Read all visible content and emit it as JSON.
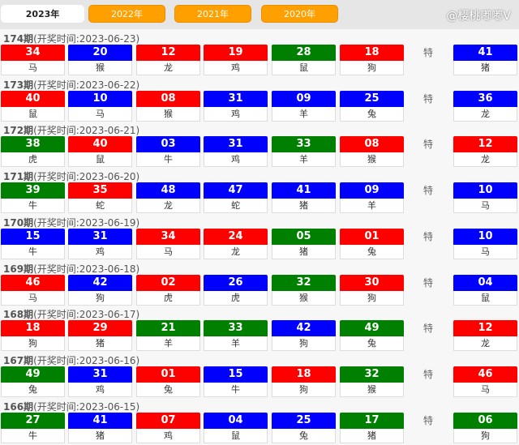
{
  "tabs": [
    {
      "label": "2023年",
      "active": true
    },
    {
      "label": "2022年"
    },
    {
      "label": "2021年"
    },
    {
      "label": "2020年"
    }
  ],
  "special_label": "特",
  "colors": {
    "r": "#ff0000",
    "b": "#0000ff",
    "g": "#008000"
  },
  "records": [
    {
      "issue": "174期",
      "time": "(开奖时间:2023-06-23)",
      "balls": [
        [
          "34",
          "r",
          "马"
        ],
        [
          "20",
          "b",
          "猴"
        ],
        [
          "12",
          "r",
          "龙"
        ],
        [
          "19",
          "r",
          "鸡"
        ],
        [
          "28",
          "g",
          "鼠"
        ],
        [
          "18",
          "r",
          "狗"
        ]
      ],
      "special": [
        "41",
        "b",
        "猪"
      ]
    },
    {
      "issue": "173期",
      "time": "(开奖时间:2023-06-22)",
      "balls": [
        [
          "40",
          "r",
          "鼠"
        ],
        [
          "10",
          "b",
          "马"
        ],
        [
          "08",
          "r",
          "猴"
        ],
        [
          "31",
          "b",
          "鸡"
        ],
        [
          "09",
          "b",
          "羊"
        ],
        [
          "25",
          "b",
          "兔"
        ]
      ],
      "special": [
        "36",
        "b",
        "龙"
      ]
    },
    {
      "issue": "172期",
      "time": "(开奖时间:2023-06-21)",
      "balls": [
        [
          "38",
          "g",
          "虎"
        ],
        [
          "40",
          "r",
          "鼠"
        ],
        [
          "03",
          "b",
          "牛"
        ],
        [
          "31",
          "b",
          "鸡"
        ],
        [
          "33",
          "g",
          "羊"
        ],
        [
          "08",
          "r",
          "猴"
        ]
      ],
      "special": [
        "12",
        "r",
        "龙"
      ]
    },
    {
      "issue": "171期",
      "time": "(开奖时间:2023-06-20)",
      "balls": [
        [
          "39",
          "g",
          "牛"
        ],
        [
          "35",
          "r",
          "蛇"
        ],
        [
          "48",
          "b",
          "龙"
        ],
        [
          "47",
          "b",
          "蛇"
        ],
        [
          "41",
          "b",
          "猪"
        ],
        [
          "09",
          "b",
          "羊"
        ]
      ],
      "special": [
        "10",
        "b",
        "马"
      ]
    },
    {
      "issue": "170期",
      "time": "(开奖时间:2023-06-19)",
      "balls": [
        [
          "15",
          "b",
          "牛"
        ],
        [
          "31",
          "b",
          "鸡"
        ],
        [
          "34",
          "r",
          "马"
        ],
        [
          "24",
          "r",
          "龙"
        ],
        [
          "05",
          "g",
          "猪"
        ],
        [
          "01",
          "r",
          "兔"
        ]
      ],
      "special": [
        "10",
        "b",
        "马"
      ]
    },
    {
      "issue": "169期",
      "time": "(开奖时间:2023-06-18)",
      "balls": [
        [
          "46",
          "r",
          "马"
        ],
        [
          "42",
          "b",
          "狗"
        ],
        [
          "02",
          "r",
          "虎"
        ],
        [
          "26",
          "b",
          "虎"
        ],
        [
          "32",
          "g",
          "猴"
        ],
        [
          "30",
          "r",
          "狗"
        ]
      ],
      "special": [
        "04",
        "b",
        "鼠"
      ]
    },
    {
      "issue": "168期",
      "time": "(开奖时间:2023-06-17)",
      "balls": [
        [
          "18",
          "r",
          "狗"
        ],
        [
          "29",
          "r",
          "猪"
        ],
        [
          "21",
          "g",
          "羊"
        ],
        [
          "33",
          "g",
          "羊"
        ],
        [
          "42",
          "b",
          "狗"
        ],
        [
          "49",
          "g",
          "兔"
        ]
      ],
      "special": [
        "12",
        "r",
        "龙"
      ]
    },
    {
      "issue": "167期",
      "time": "(开奖时间:2023-06-16)",
      "balls": [
        [
          "49",
          "g",
          "兔"
        ],
        [
          "31",
          "b",
          "鸡"
        ],
        [
          "01",
          "r",
          "兔"
        ],
        [
          "15",
          "b",
          "牛"
        ],
        [
          "18",
          "r",
          "狗"
        ],
        [
          "32",
          "g",
          "猴"
        ]
      ],
      "special": [
        "46",
        "r",
        "马"
      ]
    },
    {
      "issue": "166期",
      "time": "(开奖时间:2023-06-15)",
      "balls": [
        [
          "27",
          "g",
          "牛"
        ],
        [
          "41",
          "b",
          "猪"
        ],
        [
          "07",
          "r",
          "鸡"
        ],
        [
          "04",
          "b",
          "鼠"
        ],
        [
          "25",
          "b",
          "兔"
        ],
        [
          "17",
          "g",
          "猪"
        ]
      ],
      "special": [
        "06",
        "g",
        "狗"
      ]
    }
  ],
  "watermark": "@樱桃嘟嘟V"
}
